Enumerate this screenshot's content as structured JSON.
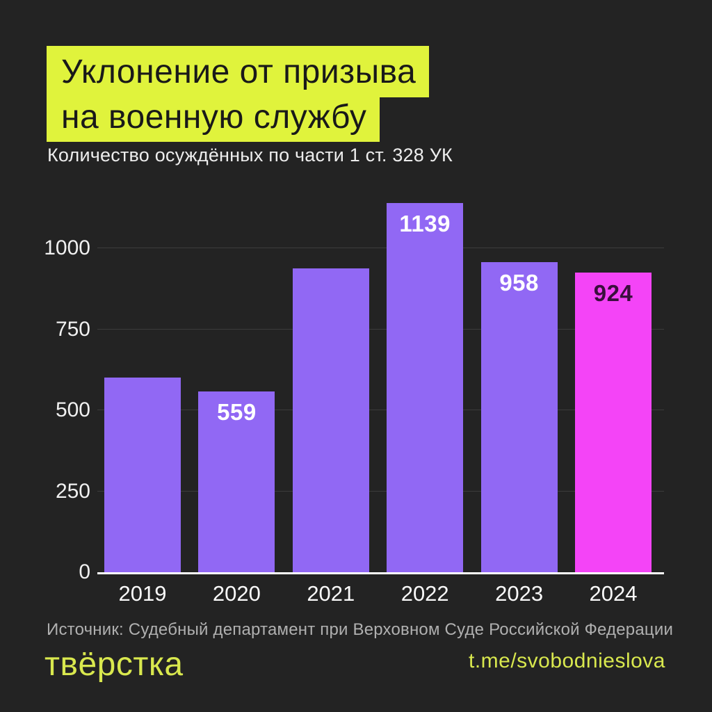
{
  "page": {
    "background_color": "#232323",
    "highlight_color": "#E0F33C",
    "accent_text_color": "#D9E84E"
  },
  "header": {
    "title_lines": [
      "Уклонение от призыва",
      "на военную службу"
    ],
    "subtitle": "Количество осуждённых по части 1 ст. 328 УК"
  },
  "chart_data": {
    "type": "bar",
    "title": "Уклонение от призыва на военную службу",
    "subtitle": "Количество осуждённых по части 1 ст. 328 УК",
    "categories": [
      "2019",
      "2020",
      "2021",
      "2022",
      "2023",
      "2024"
    ],
    "values": [
      600,
      559,
      937,
      1139,
      958,
      924
    ],
    "value_labels": [
      "",
      "559",
      "",
      "1139",
      "958",
      "924"
    ],
    "bar_colors": [
      "#9168F4",
      "#9168F4",
      "#9168F4",
      "#9168F4",
      "#9168F4",
      "#F444F7"
    ],
    "value_label_colors": [
      "#FFFFFF",
      "#FFFFFF",
      "#FFFFFF",
      "#FFFFFF",
      "#FFFFFF",
      "#3A0F3D"
    ],
    "ylim": [
      0,
      1150
    ],
    "yticks": [
      0,
      250,
      500,
      750,
      1000
    ],
    "grid": true,
    "legend": "none",
    "gridline_color": "#3C3C3C",
    "axis_color": "#FFFFFF"
  },
  "footer": {
    "source": "Источник: Судебный департамент при Верховном Суде Российской Федерации",
    "logo": "твёрстка",
    "link": "t.me/svobodnieslova"
  }
}
